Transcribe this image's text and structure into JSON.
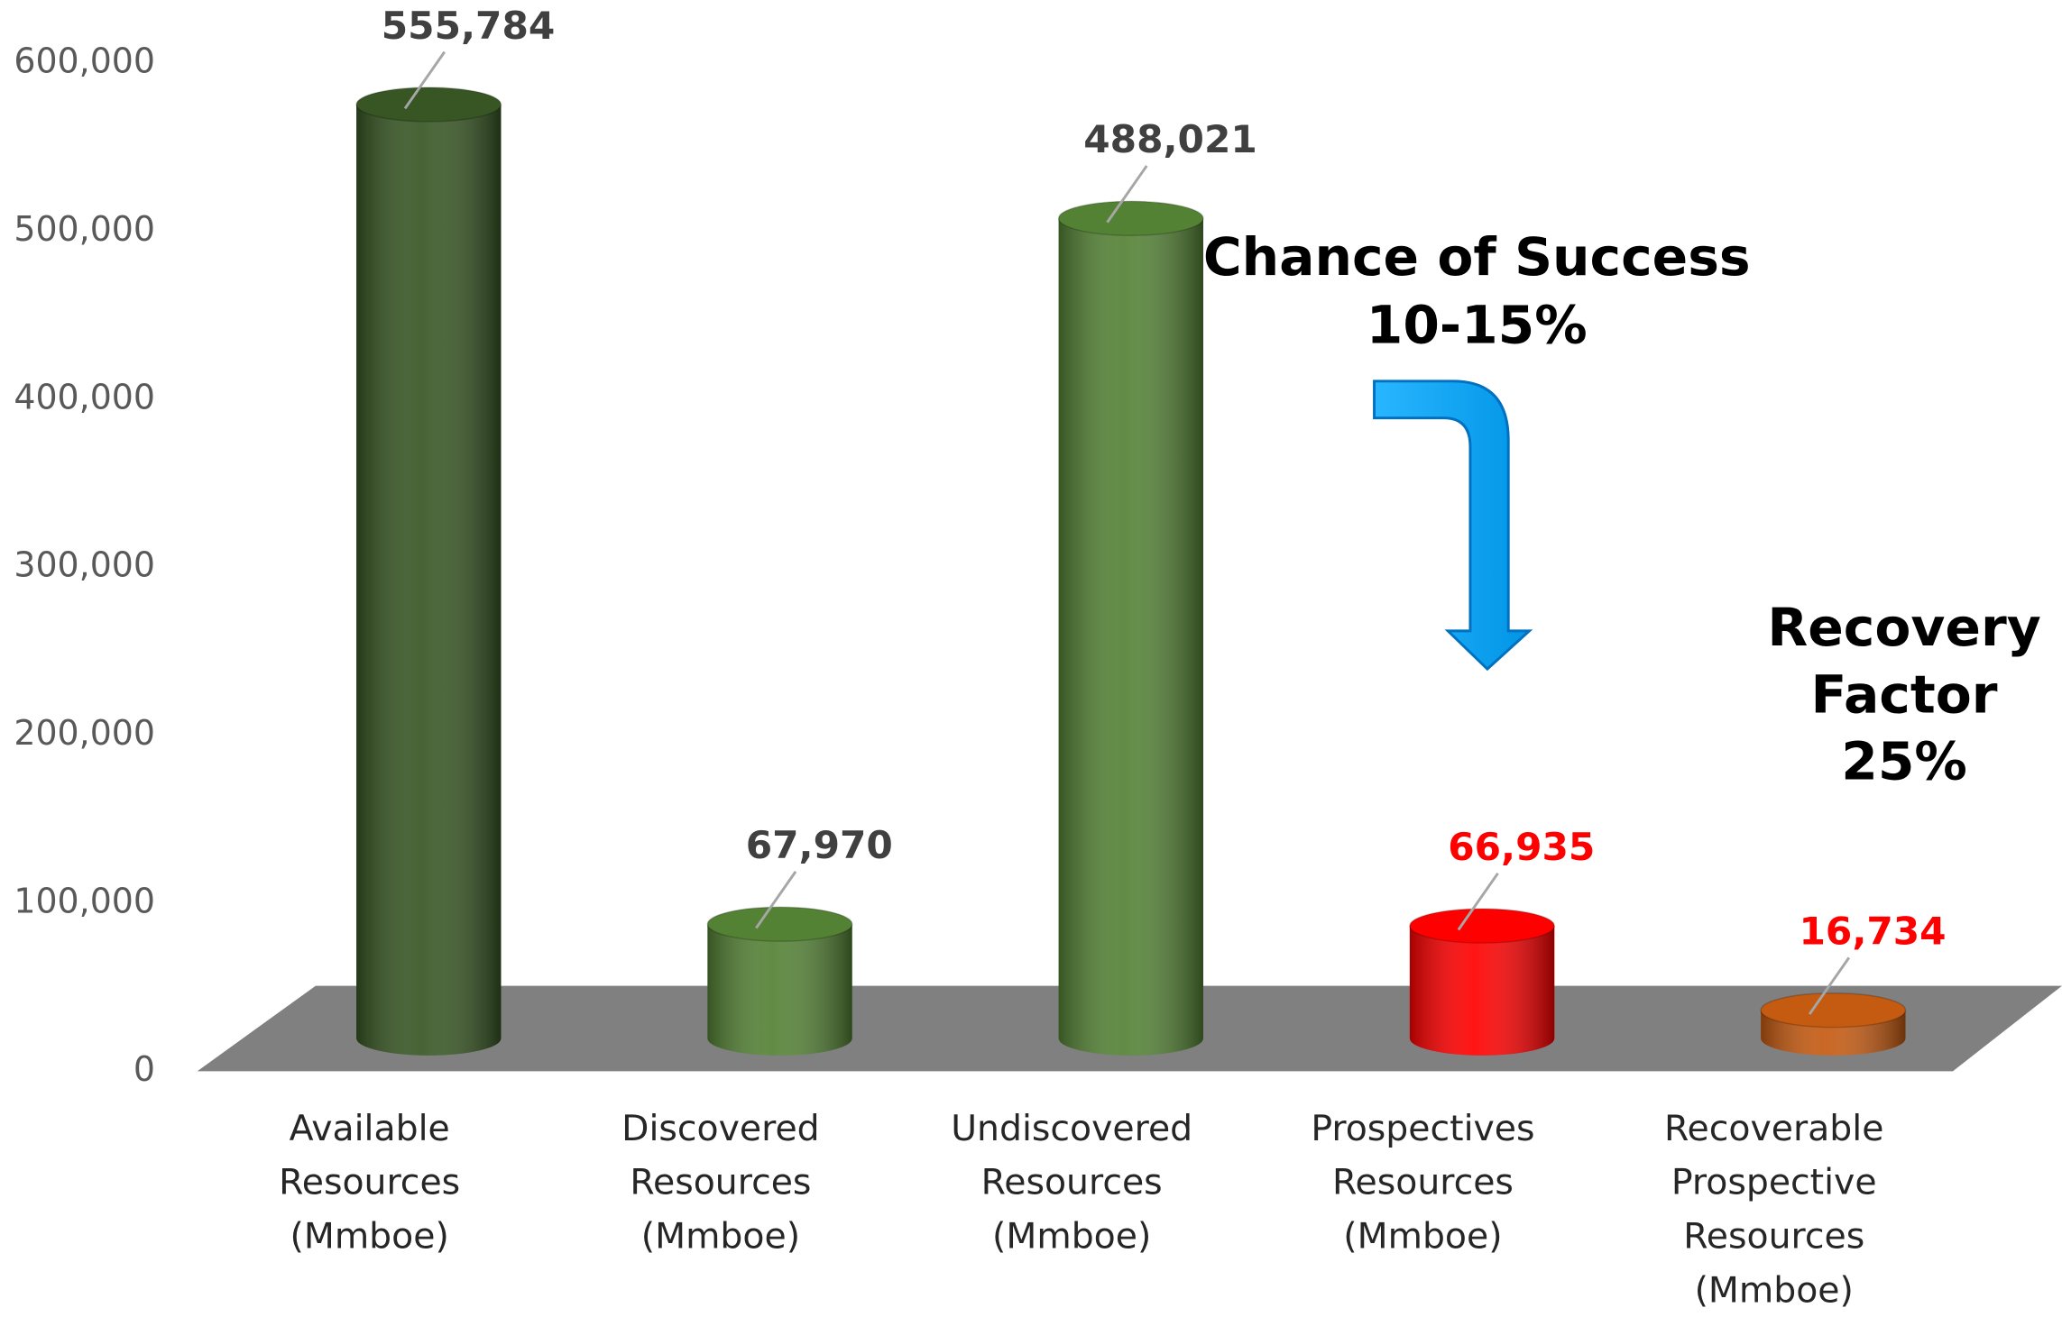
{
  "chart_data": {
    "type": "bar3d",
    "categories": [
      "Available Resources (Mmboe)",
      "Discovered Resources (Mmboe)",
      "Undiscovered Resources (Mmboe)",
      "Prospectives Resources (Mmboe)",
      "Recoverable Prospective Resources (Mmboe)"
    ],
    "values": [
      555784,
      67970,
      488021,
      66935,
      16734
    ],
    "value_labels": [
      "555,784",
      "67,970",
      "488,021",
      "66,935",
      "16,734"
    ],
    "colors": [
      "#375623",
      "#548235",
      "#548235",
      "#ff0000",
      "#c55a11"
    ],
    "label_colors": [
      "#404040",
      "#404040",
      "#404040",
      "#ff0000",
      "#ff0000"
    ],
    "ylim": [
      0,
      600000
    ],
    "yticks": [
      0,
      {
        "value": 100000,
        "label": "100,000"
      },
      {
        "value": 200000,
        "label": "200,000"
      },
      {
        "value": 300000,
        "label": "300,000"
      },
      {
        "value": 400000,
        "label": "400,000"
      },
      {
        "value": 500000,
        "label": "500,000"
      },
      {
        "value": 600000,
        "label": "600,000"
      }
    ],
    "annotations": [
      {
        "lines": [
          "Chance of Success",
          "10-15%"
        ]
      },
      {
        "lines": [
          "Recovery",
          "Factor",
          "25%"
        ]
      }
    ]
  }
}
